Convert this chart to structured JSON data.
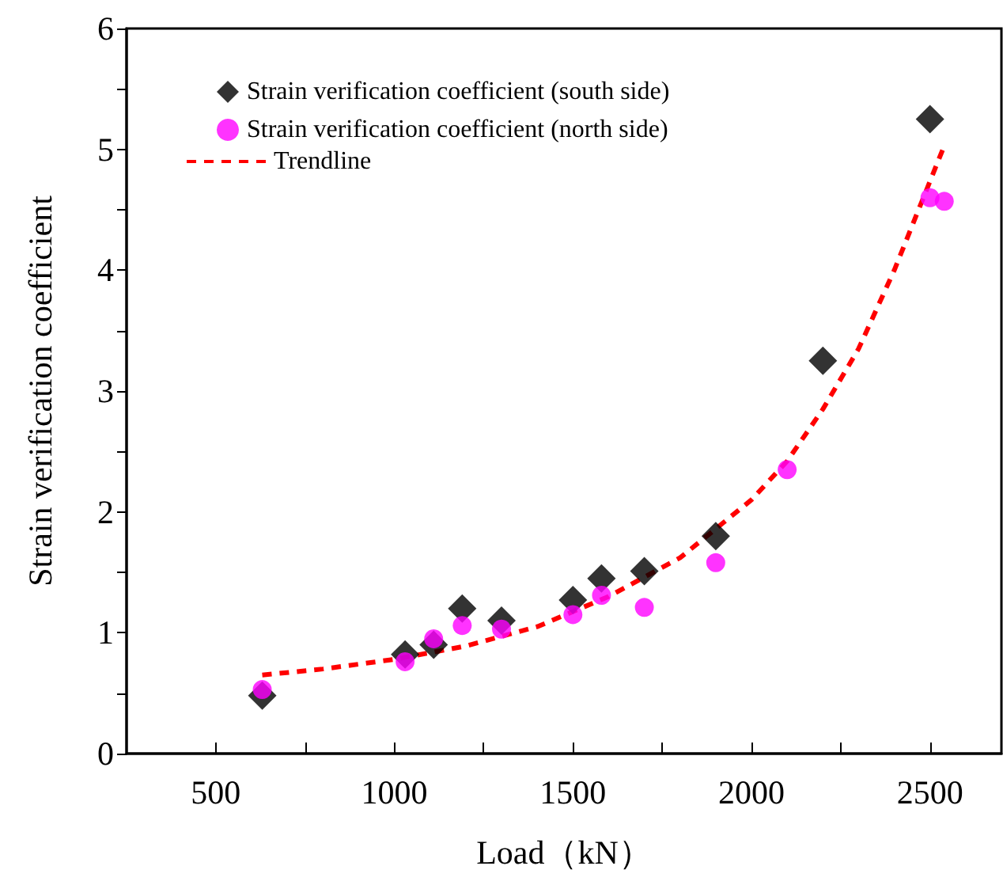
{
  "chart_data": {
    "type": "scatter",
    "xlabel": "Load（kN）",
    "ylabel": "Strain verification coefficient",
    "xlim": [
      250,
      2700
    ],
    "xticks": [
      500,
      {
        "value": 750,
        "label": null
      },
      1000,
      {
        "value": 1250,
        "label": null
      },
      1500,
      {
        "value": 1750,
        "label": null
      },
      2000,
      {
        "value": 2250,
        "label": null
      },
      2500
    ],
    "ylim": [
      0,
      6
    ],
    "yticks": [
      0,
      {
        "value": 0.5,
        "label": null
      },
      1,
      {
        "value": 1.5,
        "label": null
      },
      2,
      {
        "value": 2.5,
        "label": null
      },
      3,
      {
        "value": 3.5,
        "label": null
      },
      4,
      {
        "value": 4.5,
        "label": null
      },
      5,
      {
        "value": 5.5,
        "label": null
      },
      6
    ],
    "grid": false,
    "legend": "top left",
    "series": [
      {
        "name": "Strain verification coefficient (south side)",
        "marker": "diamond",
        "color": "#000000",
        "x": [
          630,
          1030,
          1110,
          1190,
          1300,
          1500,
          1580,
          1700,
          1900,
          2200,
          2500
        ],
        "values": [
          0.48,
          0.82,
          0.9,
          1.2,
          1.1,
          1.27,
          1.45,
          1.51,
          1.8,
          3.25,
          5.25
        ]
      },
      {
        "name": "Strain verification coefficient (north side)",
        "marker": "circle",
        "color": "#ff00ff",
        "x": [
          630,
          1030,
          1110,
          1190,
          1300,
          1500,
          1580,
          1700,
          1900,
          2100,
          2500,
          2540
        ],
        "values": [
          0.53,
          0.76,
          0.95,
          1.06,
          1.03,
          1.15,
          1.31,
          1.21,
          1.58,
          2.35,
          4.6,
          4.57
        ]
      },
      {
        "name": "Trendline",
        "type": "line",
        "marker": "none",
        "line_style": "dashed",
        "color": "#ff0000",
        "x": [
          630,
          800,
          1000,
          1200,
          1400,
          1600,
          1800,
          2000,
          2100,
          2200,
          2300,
          2400,
          2540
        ],
        "values": [
          0.65,
          0.7,
          0.78,
          0.89,
          1.05,
          1.3,
          1.62,
          2.1,
          2.42,
          2.85,
          3.35,
          4.0,
          5.03
        ]
      }
    ]
  }
}
